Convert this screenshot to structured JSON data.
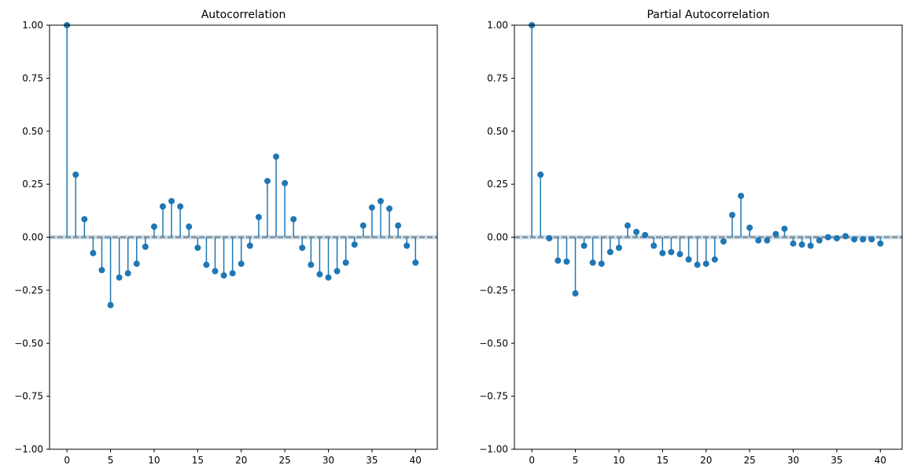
{
  "chart_data": [
    {
      "type": "stem",
      "title": "Autocorrelation",
      "xlim": [
        -2,
        42.5
      ],
      "ylim": [
        -1,
        1
      ],
      "xticks": [
        0,
        5,
        10,
        15,
        20,
        25,
        30,
        35,
        40
      ],
      "yticks": [
        -1.0,
        -0.75,
        -0.5,
        -0.25,
        0.0,
        0.25,
        0.5,
        0.75,
        1.0
      ],
      "ytick_labels": [
        "−1.00",
        "−0.75",
        "−0.50",
        "−0.25",
        "0.00",
        "0.25",
        "0.50",
        "0.75",
        "1.00"
      ],
      "confidence_band": 0.01,
      "lags": [
        0,
        1,
        2,
        3,
        4,
        5,
        6,
        7,
        8,
        9,
        10,
        11,
        12,
        13,
        14,
        15,
        16,
        17,
        18,
        19,
        20,
        21,
        22,
        23,
        24,
        25,
        26,
        27,
        28,
        29,
        30,
        31,
        32,
        33,
        34,
        35,
        36,
        37,
        38,
        39,
        40
      ],
      "values": [
        1.0,
        0.295,
        0.085,
        -0.075,
        -0.155,
        -0.32,
        -0.19,
        -0.17,
        -0.125,
        -0.045,
        0.05,
        0.145,
        0.17,
        0.145,
        0.05,
        -0.05,
        -0.13,
        -0.16,
        -0.18,
        -0.17,
        -0.125,
        -0.04,
        0.095,
        0.265,
        0.38,
        0.255,
        0.085,
        -0.05,
        -0.13,
        -0.175,
        -0.19,
        -0.16,
        -0.12,
        -0.035,
        0.055,
        0.14,
        0.17,
        0.135,
        0.055,
        -0.04,
        -0.12
      ]
    },
    {
      "type": "stem",
      "title": "Partial Autocorrelation",
      "xlim": [
        -2,
        42.5
      ],
      "ylim": [
        -1,
        1
      ],
      "xticks": [
        0,
        5,
        10,
        15,
        20,
        25,
        30,
        35,
        40
      ],
      "yticks": [
        -1.0,
        -0.75,
        -0.5,
        -0.25,
        0.0,
        0.25,
        0.5,
        0.75,
        1.0
      ],
      "ytick_labels": [
        "−1.00",
        "−0.75",
        "−0.50",
        "−0.25",
        "0.00",
        "0.25",
        "0.50",
        "0.75",
        "1.00"
      ],
      "confidence_band": 0.01,
      "lags": [
        0,
        1,
        2,
        3,
        4,
        5,
        6,
        7,
        8,
        9,
        10,
        11,
        12,
        13,
        14,
        15,
        16,
        17,
        18,
        19,
        20,
        21,
        22,
        23,
        24,
        25,
        26,
        27,
        28,
        29,
        30,
        31,
        32,
        33,
        34,
        35,
        36,
        37,
        38,
        39,
        40
      ],
      "values": [
        1.0,
        0.295,
        -0.005,
        -0.11,
        -0.115,
        -0.265,
        -0.04,
        -0.12,
        -0.125,
        -0.07,
        -0.05,
        0.055,
        0.025,
        0.01,
        -0.04,
        -0.075,
        -0.07,
        -0.08,
        -0.105,
        -0.13,
        -0.125,
        -0.105,
        -0.02,
        0.105,
        0.195,
        0.045,
        -0.015,
        -0.015,
        0.015,
        0.04,
        -0.03,
        -0.035,
        -0.04,
        -0.015,
        0.0,
        -0.005,
        0.005,
        -0.01,
        -0.01,
        -0.01,
        -0.03
      ]
    }
  ],
  "colors": {
    "stem": "#1f77b4",
    "zero_line": "#808080",
    "band": "#1f77b4"
  }
}
